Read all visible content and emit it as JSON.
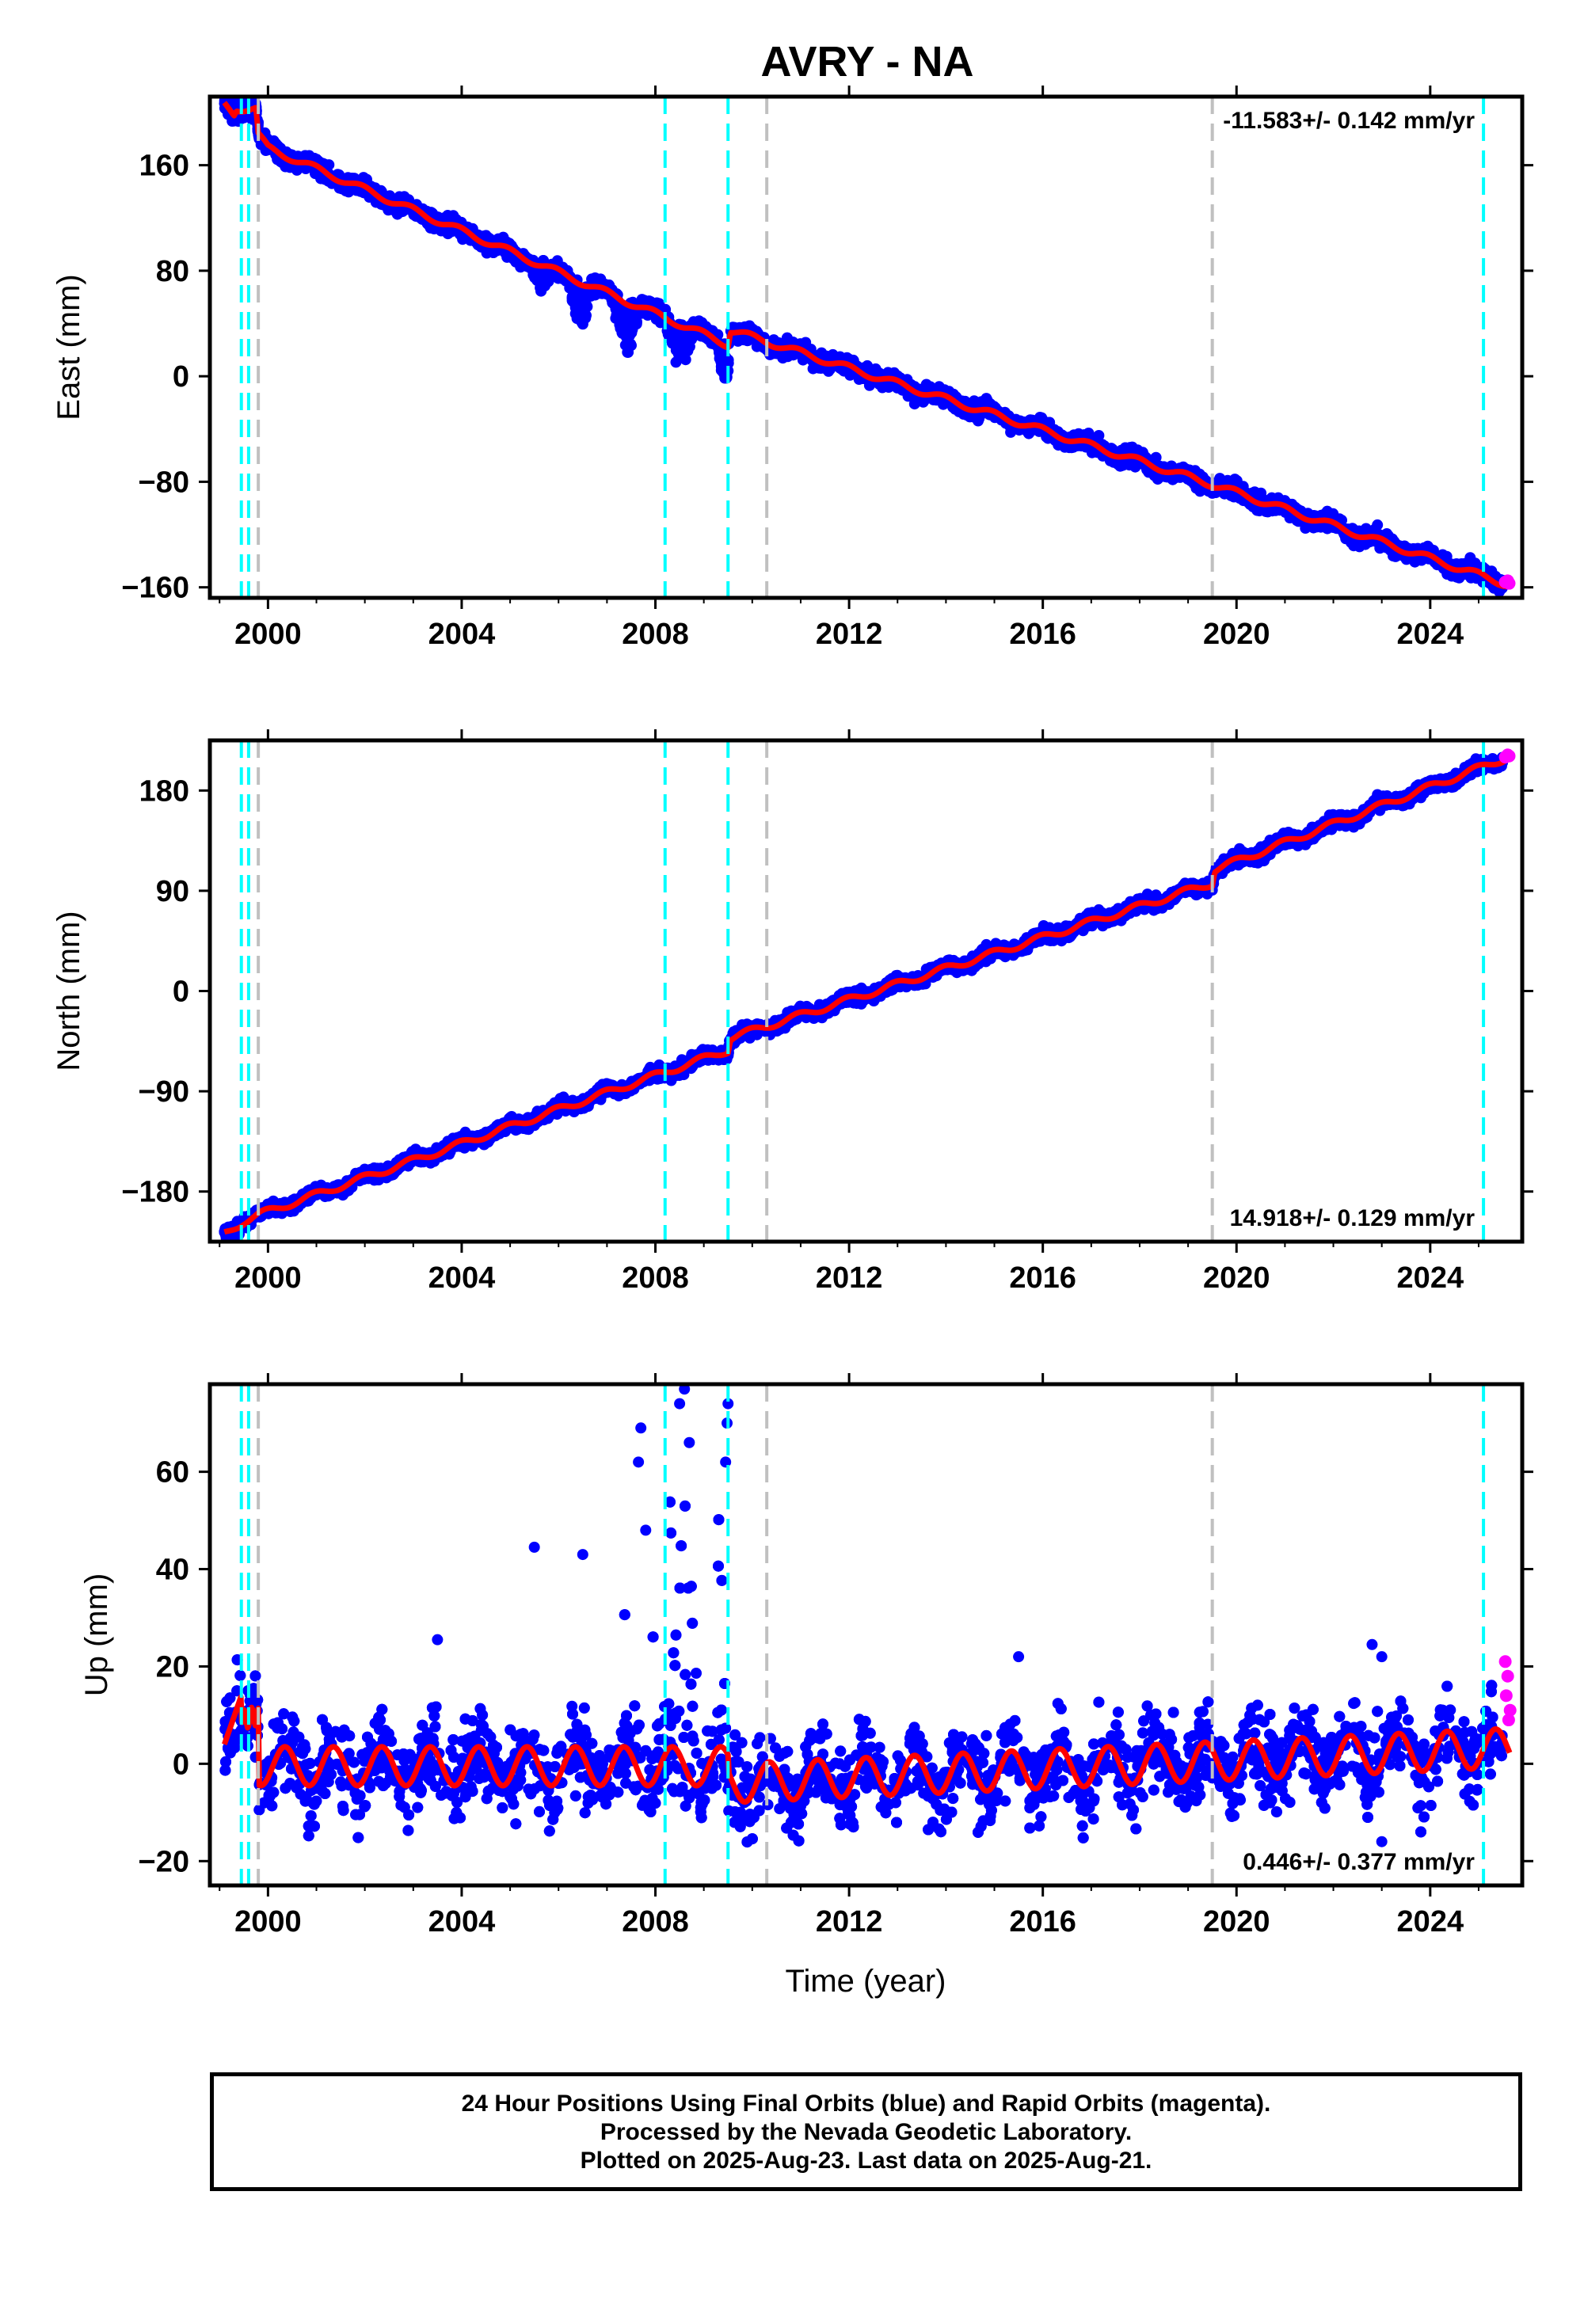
{
  "title": "AVRY - NA",
  "xlabel": "Time (year)",
  "footer": {
    "line1": "24 Hour Positions Using Final Orbits (blue) and Rapid Orbits (magenta).",
    "line2": "Processed by the Nevada Geodetic Laboratory.",
    "line3": "Plotted on 2025-Aug-23. Last data on 2025-Aug-21."
  },
  "colors": {
    "final_orbits": "#0000ff",
    "rapid_orbits": "#ff00ff",
    "model_fit": "#ff0000",
    "equipment_change": "#00ffff",
    "earthquake": "#c0c0c0"
  },
  "chart_data": [
    {
      "type": "scatter",
      "panel": "east",
      "ylabel": "East (mm)",
      "xlim": [
        1998.8,
        2025.9
      ],
      "ylim": [
        -168,
        212
      ],
      "xticks": [
        2000,
        2004,
        2008,
        2012,
        2016,
        2020,
        2024
      ],
      "yticks": [
        -160,
        -80,
        0,
        80,
        160
      ],
      "grid": false,
      "rate_label": "-11.583+/- 0.142 mm/yr",
      "rate_position": "top-right",
      "series": [
        {
          "name": "Final Orbits (blue)",
          "start": [
            1999.1,
            206
          ],
          "end": [
            2025.5,
            -158
          ],
          "noise": 4.5
        },
        {
          "name": "Rapid Orbits (magenta)",
          "x": [
            2025.55,
            2025.6,
            2025.63
          ],
          "y": [
            -156,
            -155,
            -157
          ]
        }
      ],
      "fit_knots": [
        [
          1999.1,
          206
        ],
        [
          1999.3,
          199
        ],
        [
          1999.35,
          203
        ],
        [
          1999.75,
          203
        ],
        [
          1999.8,
          183
        ],
        [
          2000.0,
          173
        ],
        [
          2009.5,
          24
        ],
        [
          2009.55,
          35
        ],
        [
          2019.5,
          -82
        ],
        [
          2025.6,
          -158
        ]
      ],
      "discrepant_dips": [
        [
          2005.4,
          2005.9,
          -15
        ],
        [
          2006.2,
          2006.7,
          -35
        ],
        [
          2007.1,
          2007.7,
          -32
        ],
        [
          2008.2,
          2008.8,
          -28
        ],
        [
          2009.3,
          2009.55,
          -30
        ]
      ],
      "vlines_equipment": [
        1999.45,
        1999.6,
        2008.2,
        2009.5,
        2025.1
      ],
      "vlines_earthquake": [
        1999.8,
        2010.3,
        2019.5
      ]
    },
    {
      "type": "scatter",
      "panel": "north",
      "ylabel": "North (mm)",
      "xlim": [
        1998.8,
        2025.9
      ],
      "ylim": [
        -225,
        225
      ],
      "xticks": [
        2000,
        2004,
        2008,
        2012,
        2016,
        2020,
        2024
      ],
      "yticks": [
        -180,
        -90,
        0,
        90,
        180
      ],
      "grid": false,
      "rate_label": "14.918+/- 0.129 mm/yr",
      "rate_position": "bottom-right",
      "series": [
        {
          "name": "Final Orbits (blue)",
          "start": [
            1999.1,
            -218
          ],
          "end": [
            2025.5,
            210
          ],
          "noise": 4
        },
        {
          "name": "Rapid Orbits (magenta)",
          "x": [
            2025.55,
            2025.6,
            2025.63
          ],
          "y": [
            210,
            212,
            211
          ]
        }
      ],
      "fit_knots": [
        [
          1999.1,
          -218
        ],
        [
          1999.5,
          -207
        ],
        [
          1999.8,
          -201
        ],
        [
          2009.5,
          -53
        ],
        [
          2009.55,
          -42
        ],
        [
          2019.5,
          97
        ],
        [
          2019.55,
          109
        ],
        [
          2025.6,
          210
        ]
      ],
      "vlines_equipment": [
        1999.45,
        1999.6,
        2008.2,
        2009.5,
        2025.1
      ],
      "vlines_earthquake": [
        1999.8,
        2010.3,
        2019.5
      ]
    },
    {
      "type": "scatter",
      "panel": "up",
      "ylabel": "Up (mm)",
      "xlim": [
        1998.8,
        2025.9
      ],
      "ylim": [
        -25,
        78
      ],
      "xticks": [
        2000,
        2004,
        2008,
        2012,
        2016,
        2020,
        2024
      ],
      "yticks": [
        -20,
        0,
        20,
        40,
        60
      ],
      "grid": false,
      "rate_label": "0.446+/- 0.377 mm/yr",
      "rate_position": "bottom-right",
      "series": [
        {
          "name": "Final Orbits (blue)",
          "start": [
            1999.1,
            5
          ],
          "end": [
            2025.5,
            5
          ],
          "noise": 6
        },
        {
          "name": "Rapid Orbits (magenta)",
          "x": [
            2025.55,
            2025.57,
            2025.6,
            2025.62,
            2025.65
          ],
          "y": [
            21,
            14,
            18,
            9,
            11
          ]
        }
      ],
      "fit": {
        "segments": [
          {
            "x0": 1999.1,
            "x1": 1999.45,
            "y0": 4,
            "y1": 14
          },
          {
            "x0": 1999.45,
            "x1": 1999.8,
            "y0": 9,
            "y1": 10
          }
        ],
        "seasonal_amplitude": 4,
        "offset_before_2009_5": -0.5,
        "offset_after_2009_5": -4,
        "trend_after_2009_5": 0.45
      },
      "outliers": [
        [
          2005.5,
          44.5
        ],
        [
          2006.5,
          43
        ],
        [
          2007.7,
          69
        ],
        [
          2007.65,
          62
        ],
        [
          2007.8,
          48
        ],
        [
          2008.6,
          77
        ],
        [
          2008.5,
          74
        ],
        [
          2008.7,
          66
        ],
        [
          2009.5,
          74
        ],
        [
          2009.48,
          70
        ],
        [
          2009.45,
          62
        ],
        [
          2003.5,
          25.5
        ],
        [
          2022.8,
          24.5
        ],
        [
          2023.0,
          22
        ],
        [
          2015.5,
          22
        ],
        [
          2023.0,
          -16
        ]
      ],
      "vlines_equipment": [
        1999.45,
        1999.6,
        2008.2,
        2009.5,
        2025.1
      ],
      "vlines_earthquake": [
        1999.8,
        2010.3,
        2019.5
      ]
    }
  ]
}
